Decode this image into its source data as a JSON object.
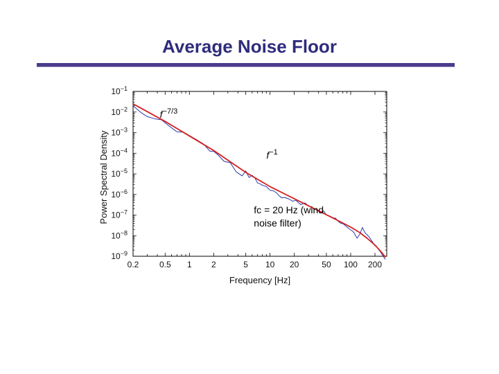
{
  "slide": {
    "title": "Average Noise Floor",
    "accent_color": "#4b3a8c",
    "title_color": "#2f2c7c"
  },
  "chart_data": {
    "type": "line",
    "title": "",
    "xlabel": "Frequency [Hz]",
    "ylabel": "Power Spectral Density",
    "x_scale": "log",
    "y_scale": "log",
    "xlim": [
      0.2,
      280
    ],
    "ylim": [
      1e-09,
      0.1
    ],
    "x_ticks": [
      {
        "value": 0.2,
        "label": "0.2"
      },
      {
        "value": 0.5,
        "label": "0.5"
      },
      {
        "value": 1,
        "label": "1"
      },
      {
        "value": 2,
        "label": "2"
      },
      {
        "value": 5,
        "label": "5"
      },
      {
        "value": 10,
        "label": "10"
      },
      {
        "value": 20,
        "label": "20"
      },
      {
        "value": 50,
        "label": "50"
      },
      {
        "value": 100,
        "label": "100"
      },
      {
        "value": 200,
        "label": "200"
      }
    ],
    "y_ticks": [
      {
        "value": 0.1,
        "base": "10",
        "exp": "−1"
      },
      {
        "value": 0.01,
        "base": "10",
        "exp": "−2"
      },
      {
        "value": 0.001,
        "base": "10",
        "exp": "−3"
      },
      {
        "value": 0.0001,
        "base": "10",
        "exp": "−4"
      },
      {
        "value": 1e-05,
        "base": "10",
        "exp": "−5"
      },
      {
        "value": 1e-06,
        "base": "10",
        "exp": "−6"
      },
      {
        "value": 1e-07,
        "base": "10",
        "exp": "−7"
      },
      {
        "value": 1e-08,
        "base": "10",
        "exp": "−8"
      },
      {
        "value": 1e-09,
        "base": "10",
        "exp": "−9"
      }
    ],
    "series": [
      {
        "color": "#2a3aa8",
        "x": [
          0.2,
          0.25,
          0.3,
          0.38,
          0.45,
          0.55,
          0.7,
          0.85,
          1.0,
          1.2,
          1.5,
          1.8,
          2.0,
          2.3,
          2.7,
          3.2,
          3.8,
          4.5,
          5.0,
          5.5,
          6.0,
          6.5,
          7.0,
          7.5,
          8.0,
          9.0,
          10,
          11,
          12,
          13,
          14,
          15,
          17,
          19,
          21,
          24,
          27,
          30,
          34,
          38,
          42,
          46,
          50,
          55,
          60,
          65,
          70,
          75,
          80,
          85,
          90,
          95,
          100,
          105,
          110,
          115,
          120,
          130,
          140,
          150,
          160,
          170,
          180,
          190,
          200,
          210,
          220,
          230,
          240,
          250,
          260,
          270
        ],
        "y": [
          0.02,
          0.0095,
          0.006,
          0.0046,
          0.0042,
          0.0022,
          0.0011,
          0.00105,
          0.00072,
          0.00048,
          0.00028,
          0.000125,
          0.000125,
          7.8e-05,
          4e-05,
          3.5e-05,
          1.25e-05,
          8e-06,
          1.4e-05,
          6.6e-06,
          8.5e-06,
          6.2e-06,
          3.6e-06,
          3.3e-06,
          2.8e-06,
          2.4e-06,
          1.6e-06,
          1.5e-06,
          1.2e-06,
          8.5e-07,
          6.8e-07,
          7.2e-07,
          6.1e-07,
          4.7e-07,
          5.2e-07,
          3.2e-07,
          3.9e-07,
          2.8e-07,
          2.2e-07,
          1.7e-07,
          1.4e-07,
          1.6e-07,
          1e-07,
          9e-08,
          7.5e-08,
          7e-08,
          5e-08,
          4e-08,
          3.8e-08,
          3.2e-08,
          2.6e-08,
          2.2e-08,
          1.9e-08,
          1.7e-08,
          1.4e-08,
          1e-08,
          7.5e-09,
          1.2e-08,
          2.5e-08,
          1.4e-08,
          1.1e-08,
          8.5e-09,
          6e-09,
          4.5e-09,
          3.2e-09,
          3e-09,
          2.2e-09,
          1.8e-09,
          1.4e-09,
          1.1e-09,
          8.5e-10,
          7e-10
        ]
      },
      {
        "color": "#d42020",
        "x": [
          0.2,
          0.5,
          1.0,
          2.0,
          5.0,
          10,
          20,
          40,
          60,
          80,
          100,
          130,
          160,
          200,
          240,
          270
        ],
        "y": [
          0.025,
          0.0035,
          0.00069,
          0.000136,
          1.18e-05,
          2.4e-06,
          6.2e-07,
          1.6e-07,
          7.2e-08,
          4.1e-08,
          2.6e-08,
          1.4e-08,
          7.5e-09,
          3.5e-09,
          1.6e-09,
          9e-10
        ]
      }
    ],
    "annotations": [
      {
        "base": "f",
        "exp": "−7/3",
        "x": 0.43,
        "y": 0.0052
      },
      {
        "base": "f",
        "exp": "−1",
        "x": 9.0,
        "y": 5.4e-05
      },
      {
        "lines": [
          "fc = 20 Hz (wind",
          "noise filter)"
        ],
        "x": 6.3,
        "y": 1.2e-07
      }
    ]
  }
}
